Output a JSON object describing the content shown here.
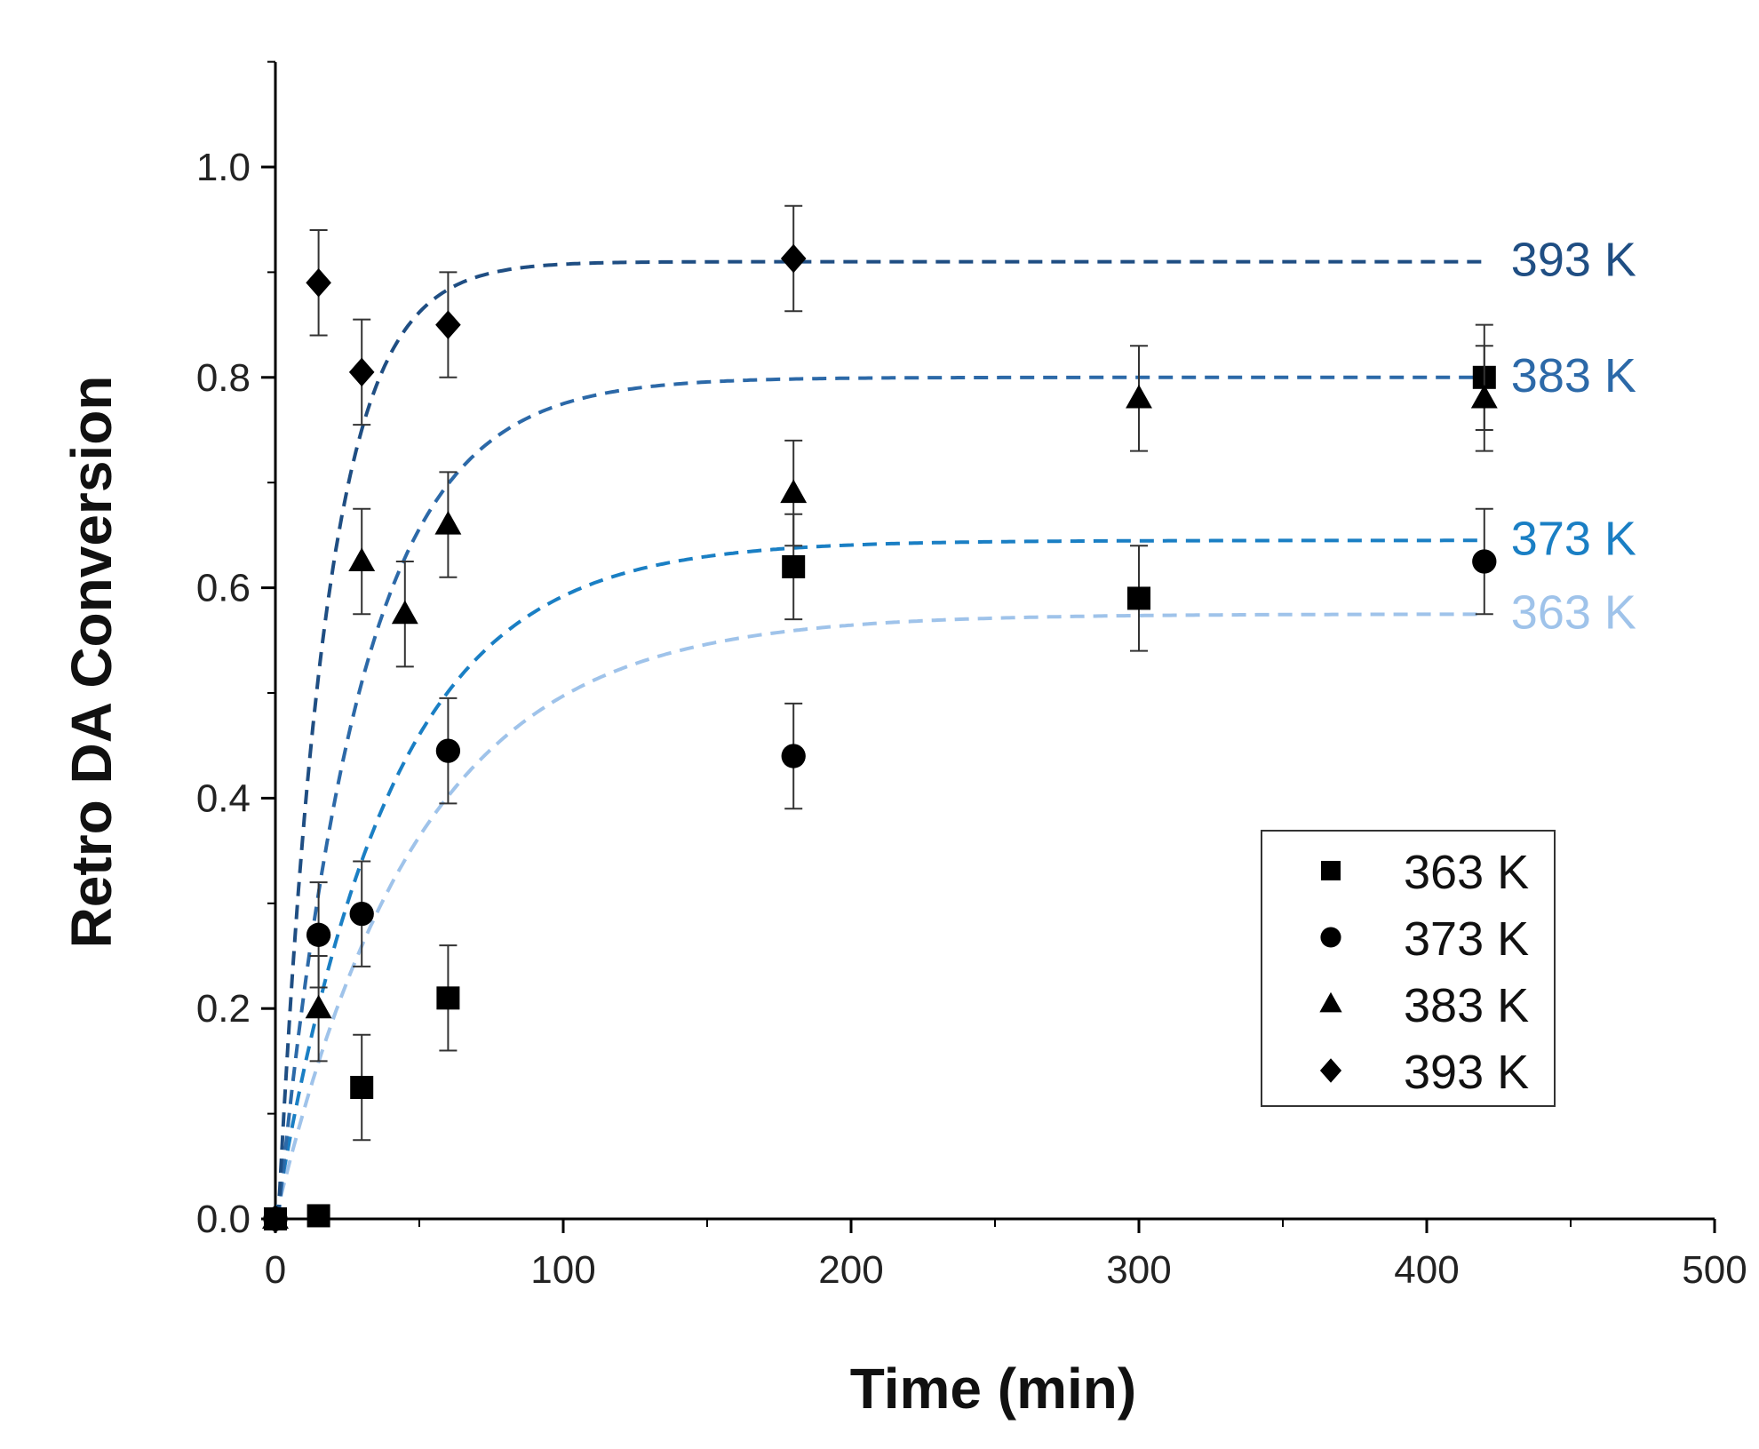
{
  "chart_data": {
    "type": "scatter",
    "title": "",
    "xlabel": "Time (min)",
    "ylabel": "Retro DA Conversion",
    "xlim": [
      0,
      500
    ],
    "ylim": [
      0,
      1.1
    ],
    "x_ticks": [
      "0",
      "100",
      "200",
      "300",
      "400",
      "500"
    ],
    "y_ticks": [
      "0.0",
      "0.2",
      "0.4",
      "0.6",
      "0.8",
      "1.0"
    ],
    "x_tick_values": [
      0,
      100,
      200,
      300,
      400,
      500
    ],
    "y_tick_values": [
      0,
      0.2,
      0.4,
      0.6,
      0.8,
      1.0
    ],
    "grid": false,
    "legend": {
      "position": "bottom-right",
      "entries": [
        "363 K",
        "373 K",
        "383 K",
        "393 K"
      ]
    },
    "series": [
      {
        "name": "363 K",
        "marker": "square",
        "color": "#000000",
        "fit_color": "#9fc3ea",
        "fit_label": "363 K",
        "fit": {
          "a": 0.575,
          "k": 0.02,
          "t0": 0
        },
        "points": [
          {
            "x": 0,
            "y": 0.0,
            "err": 0.0
          },
          {
            "x": 15,
            "y": 0.003,
            "err": 0.0
          },
          {
            "x": 30,
            "y": 0.125,
            "err": 0.05
          },
          {
            "x": 60,
            "y": 0.21,
            "err": 0.05
          },
          {
            "x": 180,
            "y": 0.62,
            "err": 0.05
          },
          {
            "x": 300,
            "y": 0.59,
            "err": 0.05
          },
          {
            "x": 420,
            "y": 0.8,
            "err": 0.05
          }
        ]
      },
      {
        "name": "373 K",
        "marker": "circle",
        "color": "#000000",
        "fit_color": "#1a7fc4",
        "fit_label": "373 K",
        "fit": {
          "a": 0.645,
          "k": 0.025,
          "t0": 0
        },
        "points": [
          {
            "x": 0,
            "y": 0.0,
            "err": 0.0
          },
          {
            "x": 15,
            "y": 0.27,
            "err": 0.05
          },
          {
            "x": 30,
            "y": 0.29,
            "err": 0.05
          },
          {
            "x": 60,
            "y": 0.445,
            "err": 0.05
          },
          {
            "x": 180,
            "y": 0.44,
            "err": 0.05
          },
          {
            "x": 420,
            "y": 0.625,
            "err": 0.05
          }
        ]
      },
      {
        "name": "383 K",
        "marker": "triangle",
        "color": "#000000",
        "fit_color": "#2c69a8",
        "fit_label": "383 K",
        "fit": {
          "a": 0.8,
          "k": 0.035,
          "t0": 1
        },
        "points": [
          {
            "x": 0,
            "y": 0.0,
            "err": 0.0
          },
          {
            "x": 15,
            "y": 0.2,
            "err": 0.05
          },
          {
            "x": 30,
            "y": 0.625,
            "err": 0.05
          },
          {
            "x": 45,
            "y": 0.575,
            "err": 0.05
          },
          {
            "x": 60,
            "y": 0.66,
            "err": 0.05
          },
          {
            "x": 180,
            "y": 0.69,
            "err": 0.05
          },
          {
            "x": 300,
            "y": 0.78,
            "err": 0.05
          },
          {
            "x": 420,
            "y": 0.78,
            "err": 0.05
          }
        ]
      },
      {
        "name": "393 K",
        "marker": "diamond",
        "color": "#000000",
        "fit_color": "#1f4e83",
        "fit_label": "393 K",
        "fit": {
          "a": 0.91,
          "k": 0.06,
          "t0": 1
        },
        "points": [
          {
            "x": 0,
            "y": 0.0,
            "err": 0.0
          },
          {
            "x": 15,
            "y": 0.89,
            "err": 0.05
          },
          {
            "x": 30,
            "y": 0.805,
            "err": 0.05
          },
          {
            "x": 60,
            "y": 0.85,
            "err": 0.05
          },
          {
            "x": 180,
            "y": 0.913,
            "err": 0.05
          }
        ]
      }
    ]
  }
}
